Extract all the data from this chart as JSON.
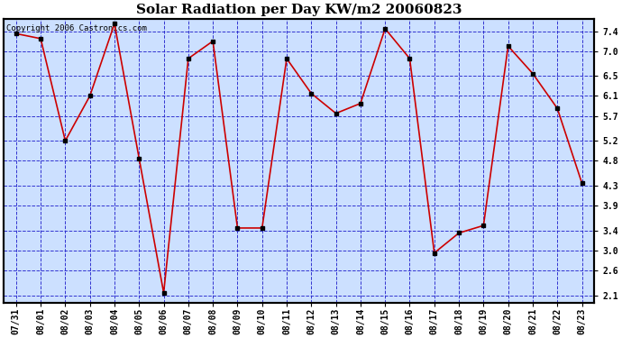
{
  "title": "Solar Radiation per Day KW/m2 20060823",
  "copyright_text": "Copyright 2006 Castronics.com",
  "dates": [
    "07/31",
    "08/01",
    "08/02",
    "08/03",
    "08/04",
    "08/05",
    "08/06",
    "08/07",
    "08/08",
    "08/09",
    "08/10",
    "08/11",
    "08/12",
    "08/13",
    "08/14",
    "08/15",
    "08/16",
    "08/17",
    "08/18",
    "08/19",
    "08/20",
    "08/21",
    "08/22",
    "08/23"
  ],
  "values": [
    7.35,
    7.25,
    5.2,
    6.1,
    7.55,
    4.85,
    2.15,
    6.85,
    7.2,
    3.45,
    3.45,
    6.85,
    6.15,
    5.75,
    5.95,
    7.45,
    6.85,
    2.95,
    3.35,
    3.5,
    7.1,
    6.55,
    5.85,
    4.35
  ],
  "line_color": "#cc0000",
  "marker_color": "#000000",
  "background_color": "#ffffff",
  "plot_bg_color": "#cce0ff",
  "grid_color": "#2222cc",
  "border_color": "#000000",
  "title_color": "#000000",
  "yticks": [
    2.1,
    2.6,
    3.0,
    3.4,
    3.9,
    4.3,
    4.8,
    5.2,
    5.7,
    6.1,
    6.5,
    7.0,
    7.4
  ],
  "ylim": [
    1.95,
    7.65
  ],
  "title_fontsize": 11,
  "tick_fontsize": 7,
  "copyright_fontsize": 6.5
}
